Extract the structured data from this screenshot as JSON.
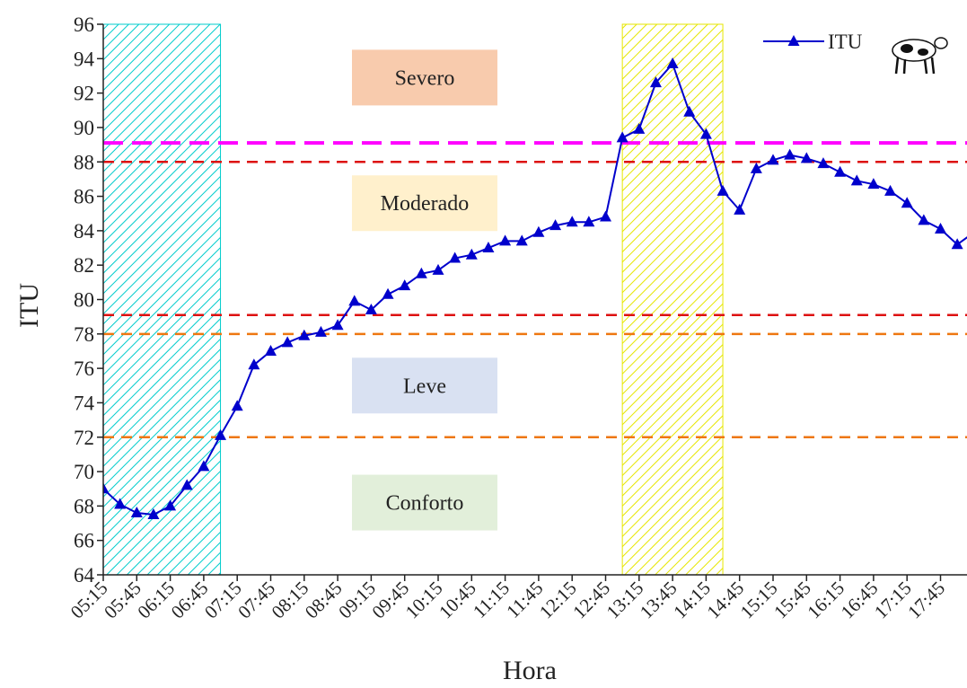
{
  "chart_data": {
    "type": "line",
    "x_label": "Hora",
    "y_label": "ITU",
    "categories": [
      "05:15",
      null,
      "05:45",
      null,
      "06:15",
      null,
      "06:45",
      null,
      "07:15",
      null,
      "07:45",
      null,
      "08:15",
      null,
      "08:45",
      null,
      "09:15",
      null,
      "09:45",
      null,
      "10:15",
      null,
      "10:45",
      null,
      "11:15",
      null,
      "11:45",
      null,
      "12:15",
      null,
      "12:45",
      null,
      "13:15",
      null,
      "13:45",
      null,
      "14:15",
      null,
      "14:45",
      null,
      "15:15",
      null,
      "15:45",
      null,
      "16:15",
      null,
      "16:45",
      null,
      "17:15",
      null,
      "17:45",
      null,
      null
    ],
    "series": [
      {
        "name": "ITU",
        "color": "#0000cc",
        "values": [
          69.0,
          68.1,
          67.6,
          67.5,
          68.0,
          69.2,
          70.3,
          72.1,
          73.8,
          76.2,
          77.0,
          77.5,
          77.9,
          78.1,
          78.5,
          79.9,
          79.4,
          80.3,
          80.8,
          81.5,
          81.7,
          82.4,
          82.6,
          83.0,
          83.4,
          83.4,
          83.9,
          84.3,
          84.5,
          84.5,
          84.8,
          89.4,
          89.9,
          92.6,
          93.7,
          90.9,
          89.6,
          86.3,
          85.2,
          87.6,
          88.1,
          88.4,
          88.2,
          87.9,
          87.4,
          86.9,
          86.7,
          86.3,
          85.6,
          84.6,
          84.1,
          83.2,
          83.9
        ]
      }
    ],
    "ylim": [
      64,
      96
    ],
    "yticks": [
      64,
      66,
      68,
      70,
      72,
      74,
      76,
      78,
      80,
      82,
      84,
      86,
      88,
      90,
      92,
      94,
      96
    ],
    "reference_lines": [
      {
        "value": 89.1,
        "color": "#ff00ff"
      },
      {
        "value": 88,
        "color": "#dd1111"
      },
      {
        "value": 79.1,
        "color": "#dd1111"
      },
      {
        "value": 78,
        "color": "#ee7711"
      },
      {
        "value": 72,
        "color": "#ee7711"
      }
    ],
    "shaded_regions": [
      {
        "start": 0,
        "end": 7,
        "color": "#00cccc"
      },
      {
        "start": 31,
        "end": 37,
        "color": "#e6e600"
      }
    ],
    "zones": [
      {
        "label": "Severo",
        "value": 92.9,
        "color": "#f8cbad"
      },
      {
        "label": "Moderado",
        "value": 85.6,
        "color": "#fff0cc"
      },
      {
        "label": "Leve",
        "value": 75.0,
        "color": "#d9e1f2"
      },
      {
        "label": "Conforto",
        "value": 68.2,
        "color": "#e2efda"
      }
    ],
    "legend": "top-right"
  }
}
